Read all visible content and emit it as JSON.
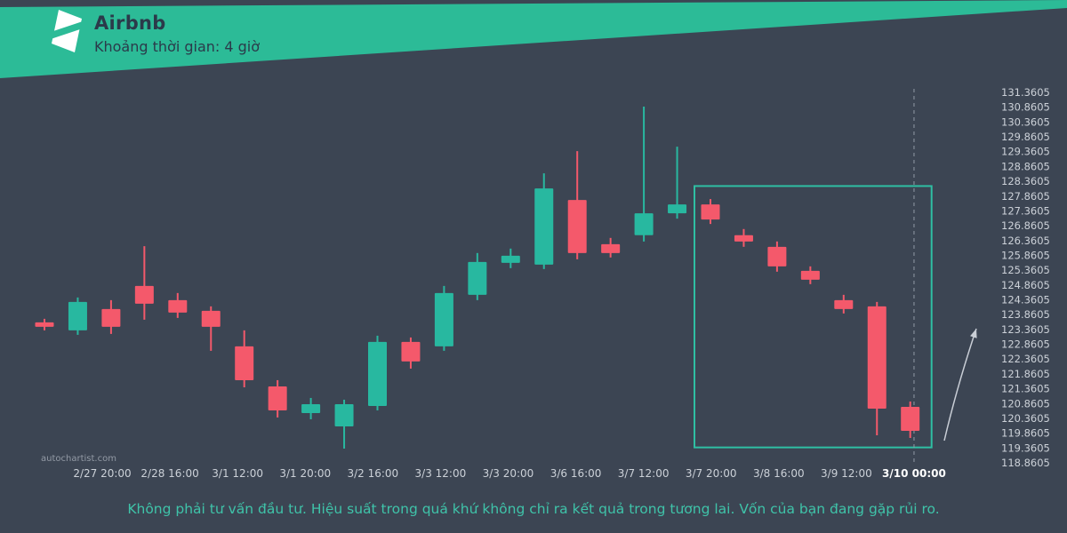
{
  "header": {
    "title": "Airbnb",
    "subtitle": "Khoảng thời gian: 4 giờ"
  },
  "watermark": "autochartist.com",
  "footer": {
    "disclaimer": "Không phải tư vấn đầu tư. Hiệu suất trong quá khứ không chỉ ra kết quả trong tương lai. Vốn của bạn đang gặp rủi ro."
  },
  "colors": {
    "background": "#3c4553",
    "banner": "#2cbb97",
    "bullish": "#28b8a0",
    "bearish": "#f4596b",
    "axis_text": "#ccd1d8",
    "axis_text_highlight": "#ffffff",
    "highlight_box": "#2fbfa3",
    "footer_text": "#3fc3a9",
    "title_text": "#2b3a4a",
    "watermark_text": "#939aa5",
    "dashed_line": "#929aa6",
    "arrow": "#c9ced6"
  },
  "chart_data": {
    "type": "candlestick",
    "title": "Airbnb",
    "interval_label": "4 giờ",
    "grid": false,
    "y_axis_side": "right",
    "ylim": [
      118.8605,
      131.3605
    ],
    "y_ticks": [
      131.3605,
      130.8605,
      130.3605,
      129.8605,
      129.3605,
      128.8605,
      128.3605,
      127.8605,
      127.3605,
      126.8605,
      126.3605,
      125.8605,
      125.3605,
      124.8605,
      124.3605,
      123.8605,
      123.3605,
      122.8605,
      122.3605,
      121.8605,
      121.3605,
      120.8605,
      120.3605,
      119.8605,
      119.3605,
      118.8605
    ],
    "x_ticks": [
      "2/27 20:00",
      "2/28 16:00",
      "3/1 12:00",
      "3/1 20:00",
      "3/2 16:00",
      "3/3 12:00",
      "3/3 20:00",
      "3/6 16:00",
      "3/7 12:00",
      "3/7 20:00",
      "3/8 16:00",
      "3/9 12:00",
      "3/10 00:00"
    ],
    "x_tick_highlight": "3/10 00:00",
    "dashed_line_tick": "3/10 00:00",
    "candles": [
      {
        "o": 123.6,
        "h": 123.72,
        "l": 123.33,
        "c": 123.45
      },
      {
        "o": 123.33,
        "h": 124.44,
        "l": 123.18,
        "c": 124.29
      },
      {
        "o": 124.05,
        "h": 124.35,
        "l": 123.21,
        "c": 123.45
      },
      {
        "o": 124.83,
        "h": 126.17,
        "l": 123.69,
        "c": 124.23
      },
      {
        "o": 124.35,
        "h": 124.59,
        "l": 123.75,
        "c": 123.93
      },
      {
        "o": 123.99,
        "h": 124.14,
        "l": 122.64,
        "c": 123.45
      },
      {
        "o": 122.79,
        "h": 123.33,
        "l": 121.41,
        "c": 121.65
      },
      {
        "o": 121.44,
        "h": 121.65,
        "l": 120.39,
        "c": 120.63
      },
      {
        "o": 120.54,
        "h": 121.05,
        "l": 120.33,
        "c": 120.84
      },
      {
        "o": 120.09,
        "h": 120.99,
        "l": 119.34,
        "c": 120.84
      },
      {
        "o": 120.78,
        "h": 123.15,
        "l": 120.63,
        "c": 122.94
      },
      {
        "o": 122.94,
        "h": 123.09,
        "l": 122.04,
        "c": 122.28
      },
      {
        "o": 122.79,
        "h": 124.83,
        "l": 122.64,
        "c": 124.59
      },
      {
        "o": 124.53,
        "h": 125.94,
        "l": 124.35,
        "c": 125.64
      },
      {
        "o": 125.61,
        "h": 126.09,
        "l": 125.43,
        "c": 125.85
      },
      {
        "o": 125.55,
        "h": 128.63,
        "l": 125.4,
        "c": 128.12
      },
      {
        "o": 127.73,
        "h": 129.38,
        "l": 125.73,
        "c": 125.94
      },
      {
        "o": 126.24,
        "h": 126.45,
        "l": 125.79,
        "c": 125.94
      },
      {
        "o": 126.54,
        "h": 130.88,
        "l": 126.33,
        "c": 127.28
      },
      {
        "o": 127.28,
        "h": 129.53,
        "l": 127.1,
        "c": 127.58
      },
      {
        "o": 127.58,
        "h": 127.76,
        "l": 126.92,
        "c": 127.07
      },
      {
        "o": 126.54,
        "h": 126.75,
        "l": 126.15,
        "c": 126.33
      },
      {
        "o": 126.15,
        "h": 126.33,
        "l": 125.31,
        "c": 125.49
      },
      {
        "o": 125.34,
        "h": 125.49,
        "l": 124.89,
        "c": 125.04
      },
      {
        "o": 124.35,
        "h": 124.53,
        "l": 123.9,
        "c": 124.05
      },
      {
        "o": 124.14,
        "h": 124.29,
        "l": 119.79,
        "c": 120.69
      },
      {
        "o": 120.75,
        "h": 120.93,
        "l": 119.7,
        "c": 119.94
      }
    ],
    "highlight_box": {
      "start_index": 20,
      "end_index": 26,
      "top_price": 128.2,
      "bottom_price": 119.38
    },
    "forecast_arrow": {
      "from": {
        "x": 1062,
        "y": 496
      },
      "mid": {
        "x": 1076,
        "y": 436
      },
      "to": {
        "x": 1098,
        "y": 370
      }
    }
  }
}
